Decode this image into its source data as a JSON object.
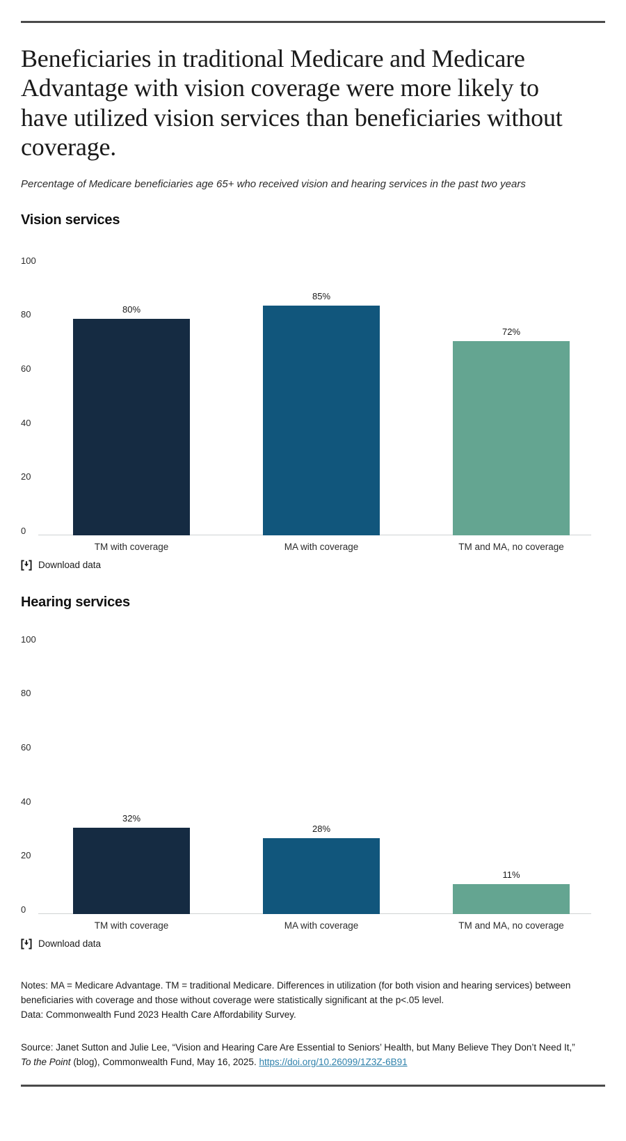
{
  "page": {
    "title": "Beneficiaries in traditional Medicare and Medicare Advantage with vision coverage were more likely to have utilized vision services than beneficiaries without coverage.",
    "subtitle": "Percentage of Medicare beneficiaries age 65+ who received vision and hearing services in the past two years"
  },
  "download_label": "Download data",
  "colors": {
    "tm_with_coverage": "#152b42",
    "ma_with_coverage": "#11567c",
    "tm_ma_no_coverage": "#64a591",
    "axis_line": "#cfd2d3",
    "divider_rule": "#4a4a4a",
    "link": "#2e81ab"
  },
  "chart_data": [
    {
      "type": "bar",
      "title": "Vision services",
      "categories": [
        "TM with coverage",
        "MA with coverage",
        "TM and MA, no coverage"
      ],
      "values": [
        80,
        85,
        72
      ],
      "value_labels": [
        "80%",
        "85%",
        "72%"
      ],
      "bar_colors": [
        "#152b42",
        "#11567c",
        "#64a591"
      ],
      "xlabel": "",
      "ylabel": "",
      "ylim": [
        0,
        100
      ],
      "y_ticks": [
        0,
        20,
        40,
        60,
        80,
        100
      ],
      "grid": false,
      "legend": "none"
    },
    {
      "type": "bar",
      "title": "Hearing services",
      "categories": [
        "TM with coverage",
        "MA with coverage",
        "TM and MA, no coverage"
      ],
      "values": [
        32,
        28,
        11
      ],
      "value_labels": [
        "32%",
        "28%",
        "11%"
      ],
      "bar_colors": [
        "#152b42",
        "#11567c",
        "#64a591"
      ],
      "xlabel": "",
      "ylabel": "",
      "ylim": [
        0,
        100
      ],
      "y_ticks": [
        0,
        20,
        40,
        60,
        80,
        100
      ],
      "grid": false,
      "legend": "none"
    }
  ],
  "notes": {
    "line1": "Notes: MA = Medicare Advantage. TM = traditional Medicare. Differences in utilization (for both vision and hearing services) between beneficiaries with coverage and those without coverage were statistically significant at the p<.05 level.",
    "line2": "Data: Commonwealth Fund 2023 Health Care Affordability Survey."
  },
  "source": {
    "prefix": "Source: Janet Sutton and Julie Lee, “Vision and Hearing Care Are Essential to Seniors’ Health, but Many Believe They Don’t Need It,” ",
    "italic": "To the Point",
    "suffix": " (blog), Commonwealth Fund, May 16, 2025. ",
    "link": "https://doi.org/10.26099/1Z3Z-6B91"
  }
}
